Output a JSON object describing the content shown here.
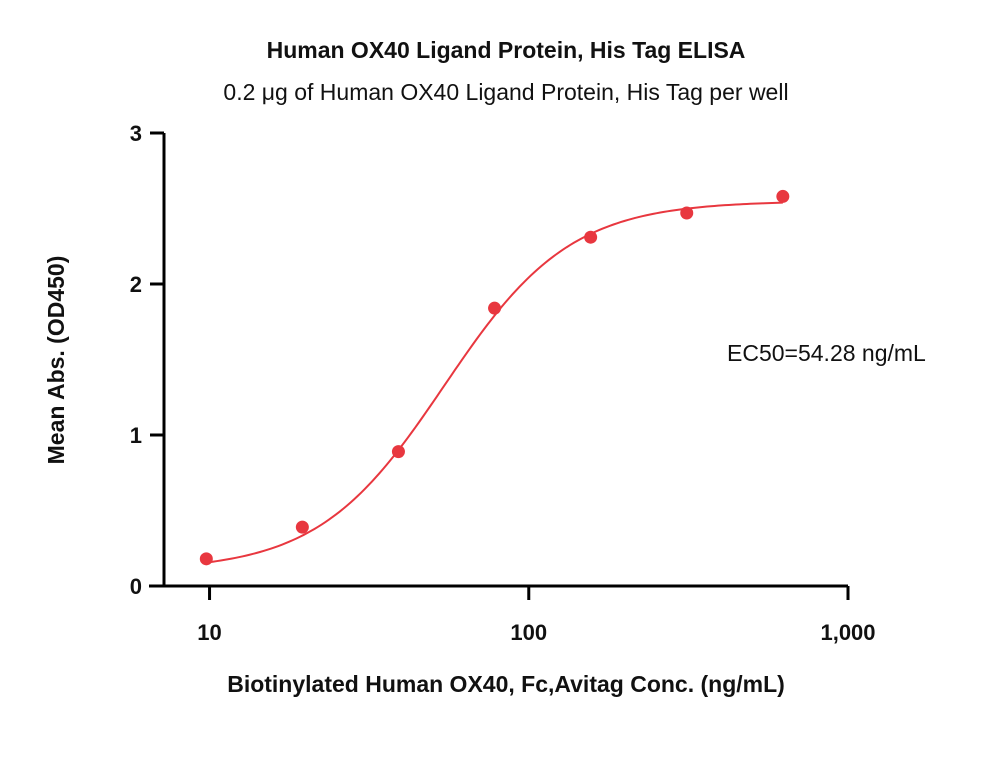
{
  "chart_data": {
    "type": "scatter",
    "title": "Human OX40 Ligand Protein, His Tag ELISA",
    "subtitle": "0.2 μg of Human OX40 Ligand Protein, His Tag per well",
    "xlabel": "Biotinylated Human OX40, Fc,Avitag Conc. (ng/mL)",
    "ylabel": "Mean Abs. (OD450)",
    "x_scale": "log",
    "xlim": [
      7.2,
      1000
    ],
    "ylim": [
      0,
      3
    ],
    "x_ticks": [
      10,
      100,
      1000
    ],
    "x_tick_labels": [
      "10",
      "100",
      "1,000"
    ],
    "y_ticks": [
      0,
      1,
      2,
      3
    ],
    "y_tick_labels": [
      "0",
      "1",
      "2",
      "3"
    ],
    "series": [
      {
        "x": [
          9.77,
          19.53,
          39.06,
          78.13,
          156.25,
          312.5,
          625
        ],
        "y": [
          0.18,
          0.39,
          0.89,
          1.84,
          2.31,
          2.47,
          2.58
        ]
      }
    ],
    "fit": {
      "model": "4PL",
      "bottom": 0.1,
      "top": 2.55,
      "ec50": 54.28,
      "hill": 2.2
    },
    "annotation": "EC50=54.28 ng/mL",
    "color": "#e8373f",
    "grid": false
  }
}
